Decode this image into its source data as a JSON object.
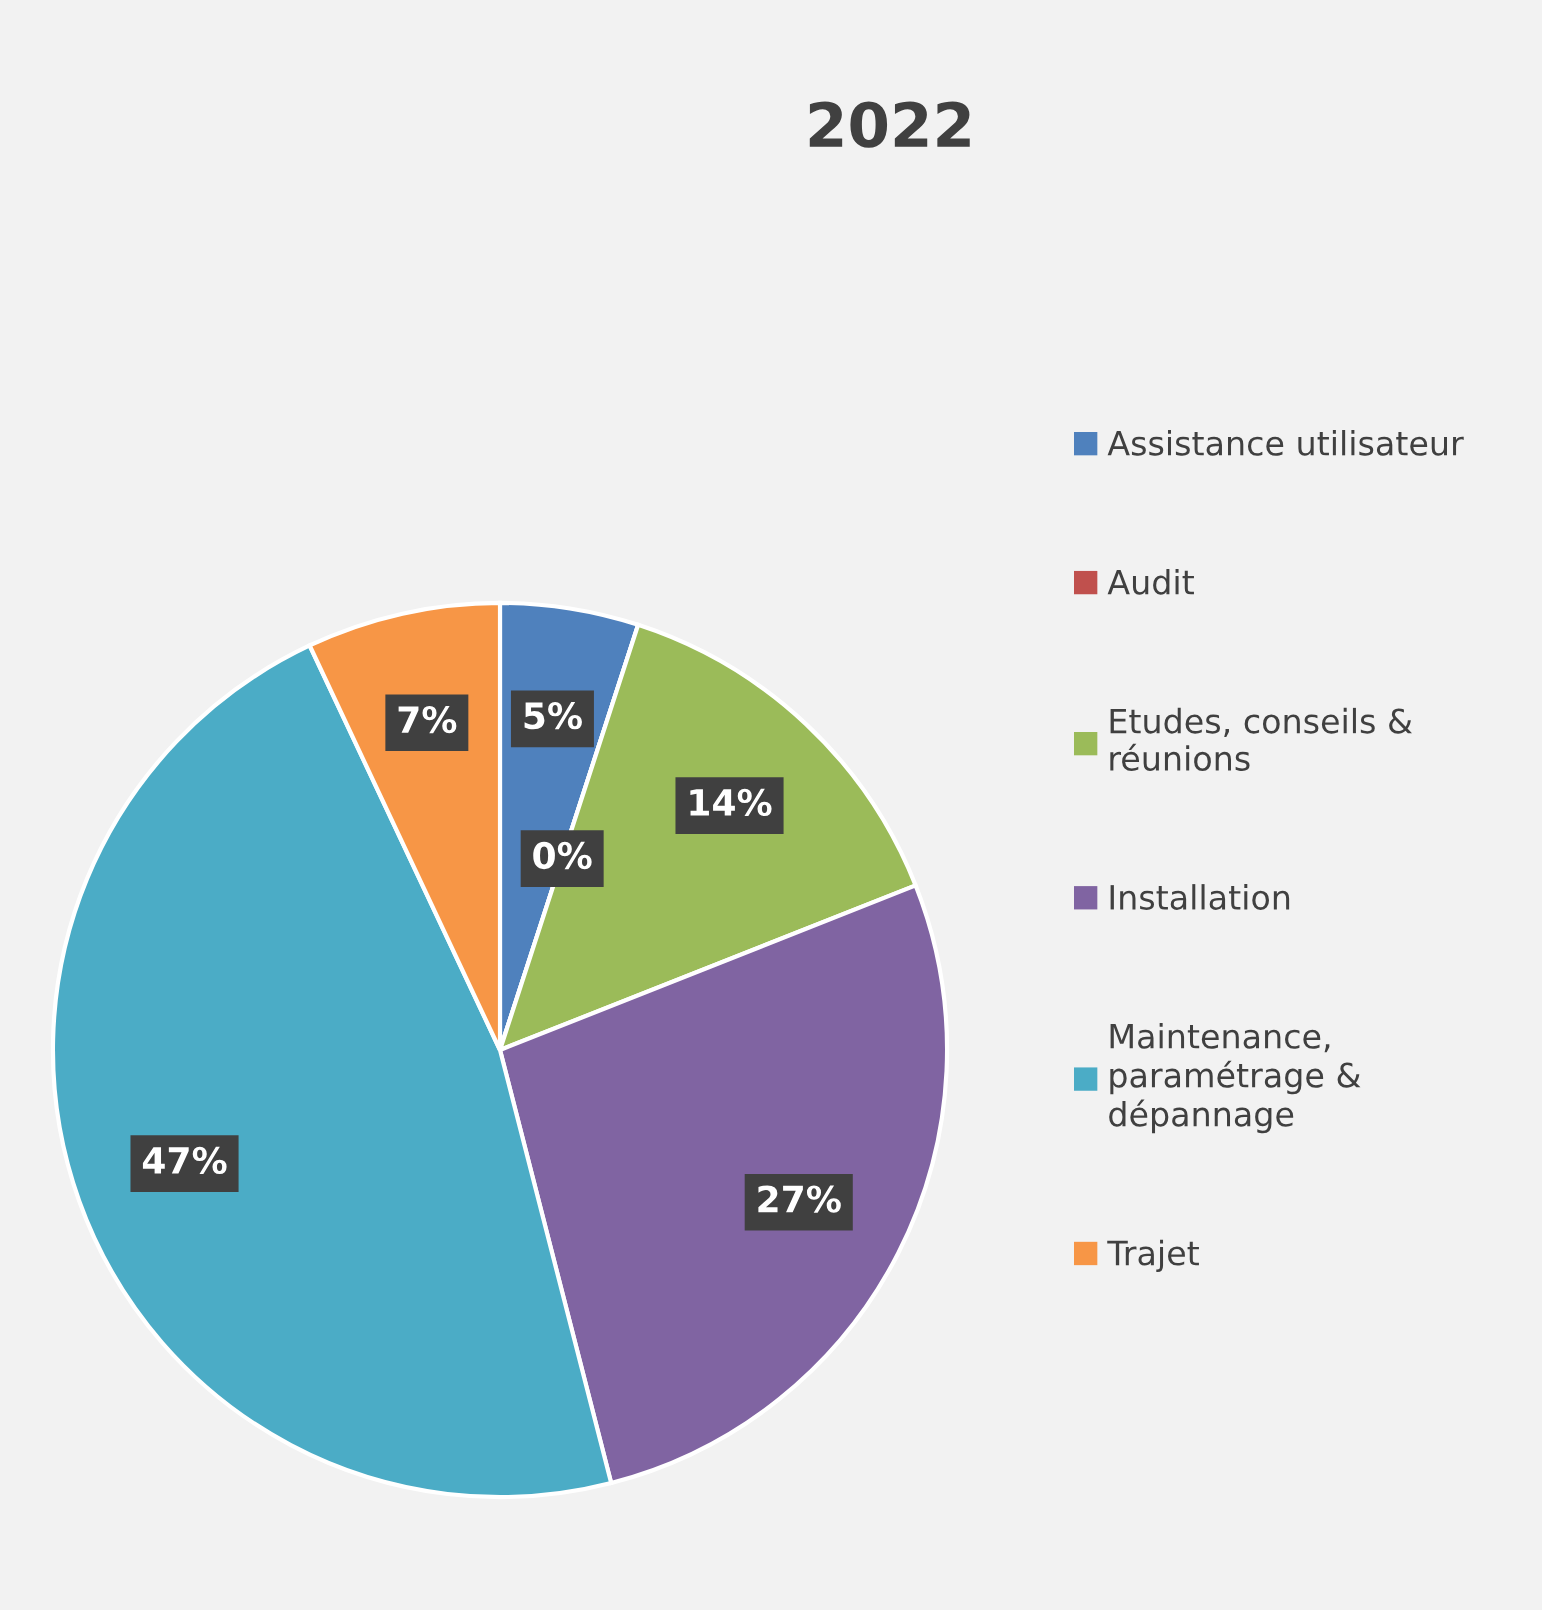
{
  "chart_data": {
    "type": "pie",
    "title": "2022",
    "categories": [
      "Assistance utilisateur",
      "Audit",
      "Etudes, conseils &\nréunions",
      "Installation",
      "Maintenance,\nparamétrage &\ndépannage",
      "Trajet"
    ],
    "values": [
      5,
      0,
      14,
      27,
      47,
      7
    ],
    "colors": [
      "#4f81bd",
      "#c0504d",
      "#9bbb59",
      "#8064a2",
      "#4bacc6",
      "#f79646"
    ],
    "value_labels": [
      "5%",
      "0%",
      "14%",
      "27%",
      "47%",
      "7%"
    ],
    "legend": "right"
  }
}
